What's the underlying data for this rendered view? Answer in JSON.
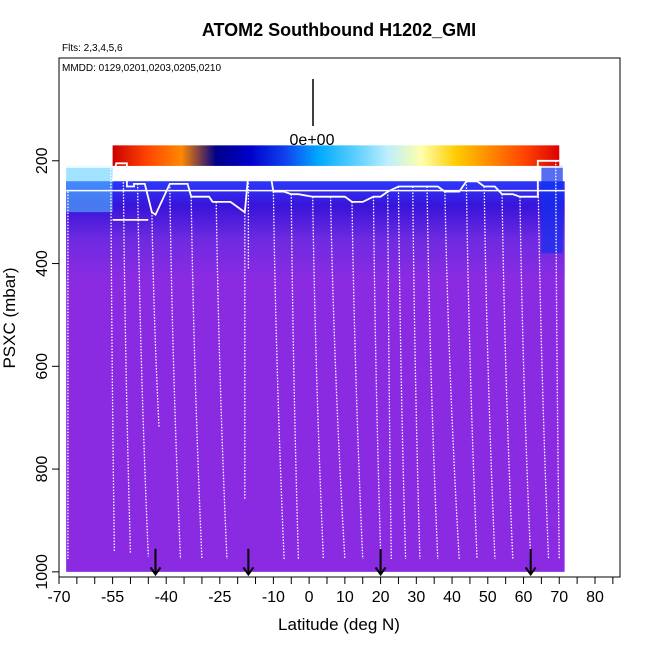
{
  "chart_data": {
    "type": "heatmap",
    "title": "ATOM2 Southbound H1202_GMI",
    "flights_note": "Flts: 2,3,4,5,6",
    "dates_note": "MMDD: 0129,0201,0203,0205,0210",
    "xlabel": "Latitude (deg N)",
    "ylabel": "PSXC (mbar)",
    "xlim": [
      -70,
      87
    ],
    "ylim": [
      1010,
      0
    ],
    "x_ticks": [
      -70,
      -55,
      -40,
      -25,
      -10,
      0,
      10,
      20,
      30,
      40,
      50,
      60,
      70,
      80
    ],
    "x_tick_labels": [
      "-70",
      "-55",
      "-40",
      "-25",
      "-10",
      "0",
      "10",
      "20",
      "30",
      "40",
      "50",
      "60",
      "70",
      "80"
    ],
    "x_minor_ticks": [
      -65,
      -60,
      -50,
      -45,
      -35,
      -30,
      -20,
      -15,
      -5,
      5,
      15,
      25,
      35,
      45,
      55,
      65,
      75,
      85
    ],
    "y_ticks": [
      200,
      400,
      600,
      800,
      1000
    ],
    "y_tick_labels": [
      "200",
      "400",
      "600",
      "800",
      "1000"
    ],
    "scale_label": "0e+00",
    "arrow_latitudes": [
      -43,
      -17,
      20,
      62
    ],
    "colorbar": {
      "lat_range": [
        -55,
        70
      ],
      "p_range": [
        170,
        210
      ],
      "colors": [
        "#cc0000",
        "#ff4400",
        "#ff8800",
        "#000088",
        "#0000cc",
        "#1040ee",
        "#00aaff",
        "#55ccff",
        "#bbeeff",
        "#ffffaa",
        "#ffcc00",
        "#ff8800",
        "#ff4400",
        "#dd0000"
      ]
    },
    "background_color": "#8a2be2",
    "profiles": [
      {
        "lat_start": -67.5,
        "lat_end": -67.5,
        "p_top": 260,
        "p_bottom": 975
      },
      {
        "lat_start": -55.5,
        "lat_end": -54.5,
        "p_top": 215,
        "p_bottom": 960
      },
      {
        "lat_start": -52,
        "lat_end": -50,
        "p_top": 230,
        "p_bottom": 965
      },
      {
        "lat_start": -48,
        "lat_end": -45,
        "p_top": 245,
        "p_bottom": 970
      },
      {
        "lat_start": -44,
        "lat_end": -42,
        "p_top": 300,
        "p_bottom": 720
      },
      {
        "lat_start": -39,
        "lat_end": -36,
        "p_top": 245,
        "p_bottom": 975
      },
      {
        "lat_start": -33,
        "lat_end": -30,
        "p_top": 270,
        "p_bottom": 975
      },
      {
        "lat_start": -26,
        "lat_end": -23,
        "p_top": 280,
        "p_bottom": 975
      },
      {
        "lat_start": -18,
        "lat_end": -18,
        "p_top": 300,
        "p_bottom": 860
      },
      {
        "lat_start": -17,
        "lat_end": -17,
        "p_top": 220,
        "p_bottom": 410
      },
      {
        "lat_start": -10,
        "lat_end": -7,
        "p_top": 260,
        "p_bottom": 975
      },
      {
        "lat_start": -5,
        "lat_end": -3,
        "p_top": 265,
        "p_bottom": 975
      },
      {
        "lat_start": 1,
        "lat_end": 4,
        "p_top": 270,
        "p_bottom": 975
      },
      {
        "lat_start": 6,
        "lat_end": 10,
        "p_top": 270,
        "p_bottom": 975
      },
      {
        "lat_start": 12,
        "lat_end": 15,
        "p_top": 280,
        "p_bottom": 975
      },
      {
        "lat_start": 18,
        "lat_end": 20,
        "p_top": 270,
        "p_bottom": 960
      },
      {
        "lat_start": 22,
        "lat_end": 23,
        "p_top": 260,
        "p_bottom": 975
      },
      {
        "lat_start": 25,
        "lat_end": 27,
        "p_top": 250,
        "p_bottom": 975
      },
      {
        "lat_start": 29,
        "lat_end": 31,
        "p_top": 250,
        "p_bottom": 975
      },
      {
        "lat_start": 33,
        "lat_end": 36,
        "p_top": 250,
        "p_bottom": 975
      },
      {
        "lat_start": 38,
        "lat_end": 42,
        "p_top": 260,
        "p_bottom": 975
      },
      {
        "lat_start": 44,
        "lat_end": 47,
        "p_top": 240,
        "p_bottom": 975
      },
      {
        "lat_start": 49,
        "lat_end": 52,
        "p_top": 250,
        "p_bottom": 975
      },
      {
        "lat_start": 54,
        "lat_end": 57,
        "p_top": 265,
        "p_bottom": 975
      },
      {
        "lat_start": 59,
        "lat_end": 62,
        "p_top": 270,
        "p_bottom": 975
      },
      {
        "lat_start": 64,
        "lat_end": 67,
        "p_top": 200,
        "p_bottom": 975
      },
      {
        "lat_start": 69,
        "lat_end": 70,
        "p_top": 200,
        "p_bottom": 975
      }
    ],
    "flight_track": [
      [
        -55,
        240
      ],
      [
        -54,
        205
      ],
      [
        -51,
        205
      ],
      [
        -51,
        250
      ],
      [
        -49,
        250
      ],
      [
        -49,
        245
      ],
      [
        -46,
        245
      ],
      [
        -44,
        300
      ],
      [
        -43,
        305
      ],
      [
        -39,
        245
      ],
      [
        -34,
        245
      ],
      [
        -33,
        270
      ],
      [
        -28,
        270
      ],
      [
        -27,
        280
      ],
      [
        -22,
        280
      ],
      [
        -18,
        300
      ],
      [
        -17,
        225
      ],
      [
        -15,
        222
      ],
      [
        -14,
        218
      ],
      [
        -11,
        218
      ],
      [
        -10,
        260
      ],
      [
        -7,
        260
      ],
      [
        -5,
        265
      ],
      [
        -3,
        265
      ],
      [
        1,
        270
      ],
      [
        4,
        270
      ],
      [
        6,
        270
      ],
      [
        10,
        270
      ],
      [
        12,
        280
      ],
      [
        15,
        280
      ],
      [
        18,
        270
      ],
      [
        20,
        270
      ],
      [
        22,
        260
      ],
      [
        25,
        250
      ],
      [
        27,
        250
      ],
      [
        29,
        250
      ],
      [
        31,
        250
      ],
      [
        33,
        250
      ],
      [
        36,
        250
      ],
      [
        38,
        260
      ],
      [
        42,
        260
      ],
      [
        44,
        240
      ],
      [
        47,
        240
      ],
      [
        49,
        250
      ],
      [
        52,
        250
      ],
      [
        54,
        265
      ],
      [
        57,
        265
      ],
      [
        59,
        270
      ],
      [
        62,
        270
      ],
      [
        64,
        270
      ],
      [
        64,
        200
      ],
      [
        68,
        200
      ],
      [
        70,
        200
      ]
    ],
    "segment_track": [
      [
        -55,
        315
      ],
      [
        -45,
        315
      ]
    ]
  }
}
